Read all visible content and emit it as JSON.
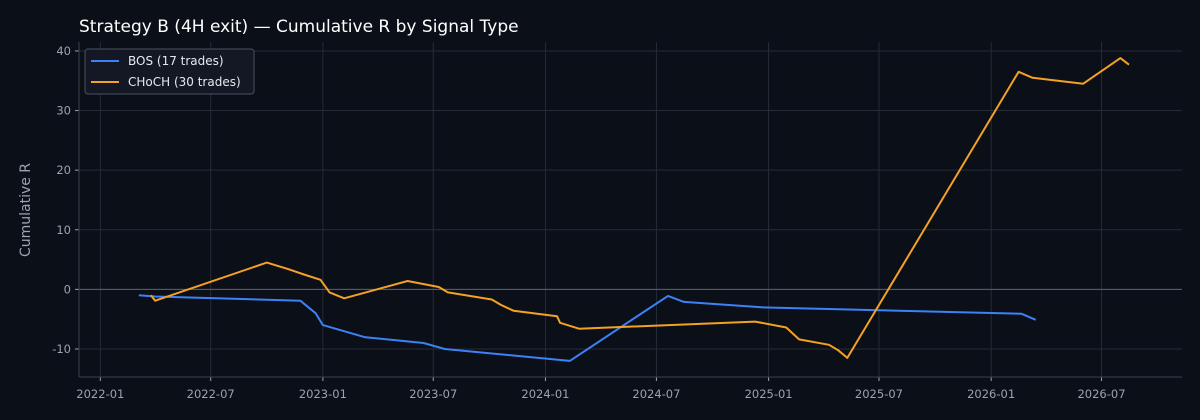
{
  "chart_data": {
    "type": "line",
    "title": "Strategy B (4H exit) — Cumulative R by Signal Type",
    "xlabel": "",
    "ylabel": "Cumulative R",
    "xlim": [
      "2021-11-27",
      "2026-11-10"
    ],
    "ylim": [
      -14.7,
      41.5
    ],
    "xticks": [
      "2022-01",
      "2022-07",
      "2023-01",
      "2023-07",
      "2024-01",
      "2024-07",
      "2025-01",
      "2025-07",
      "2026-01",
      "2026-07"
    ],
    "yticks": [
      -10,
      0,
      10,
      20,
      30,
      40
    ],
    "grid": true,
    "zero_line": true,
    "legend": "top-left",
    "colors": {
      "background": "#0b0f18",
      "grid": "#252b38",
      "axis": "#3a4150",
      "text": "#9aa3b2"
    },
    "series": [
      {
        "name": "BOS (17 trades)",
        "color": "#3b82f6",
        "points": [
          [
            "2022-03-05",
            -1.0
          ],
          [
            "2022-04-01",
            -1.2
          ],
          [
            "2022-11-25",
            -1.9
          ],
          [
            "2022-12-20",
            -4.0
          ],
          [
            "2023-01-01",
            -6.0
          ],
          [
            "2023-03-10",
            -8.0
          ],
          [
            "2023-06-15",
            -9.0
          ],
          [
            "2023-07-20",
            -10.0
          ],
          [
            "2024-02-10",
            -12.0
          ],
          [
            "2024-07-20",
            -1.1
          ],
          [
            "2024-08-15",
            -2.1
          ],
          [
            "2024-12-20",
            -3.0
          ],
          [
            "2025-07-01",
            -3.5
          ],
          [
            "2026-02-20",
            -4.1
          ],
          [
            "2026-03-15",
            -5.1
          ]
        ]
      },
      {
        "name": "CHoCH (30 trades)",
        "color": "#f5a124",
        "points": [
          [
            "2022-03-25",
            -1.0
          ],
          [
            "2022-04-01",
            -1.9
          ],
          [
            "2022-10-01",
            4.5
          ],
          [
            "2022-11-05",
            3.4
          ],
          [
            "2022-12-01",
            2.5
          ],
          [
            "2022-12-28",
            1.6
          ],
          [
            "2023-01-12",
            -0.5
          ],
          [
            "2023-02-05",
            -1.5
          ],
          [
            "2023-05-20",
            1.4
          ],
          [
            "2023-07-10",
            0.4
          ],
          [
            "2023-07-25",
            -0.5
          ],
          [
            "2023-10-05",
            -1.7
          ],
          [
            "2023-10-20",
            -2.6
          ],
          [
            "2023-11-10",
            -3.6
          ],
          [
            "2024-01-20",
            -4.5
          ],
          [
            "2024-01-25",
            -5.6
          ],
          [
            "2024-02-25",
            -6.6
          ],
          [
            "2024-12-10",
            -5.4
          ],
          [
            "2025-01-30",
            -6.4
          ],
          [
            "2025-02-20",
            -8.4
          ],
          [
            "2025-04-10",
            -9.3
          ],
          [
            "2025-04-25",
            -10.2
          ],
          [
            "2025-05-10",
            -11.5
          ],
          [
            "2026-02-15",
            36.5
          ],
          [
            "2026-03-10",
            35.5
          ],
          [
            "2026-06-01",
            34.5
          ],
          [
            "2026-08-01",
            38.8
          ],
          [
            "2026-08-15",
            37.7
          ]
        ]
      }
    ]
  }
}
